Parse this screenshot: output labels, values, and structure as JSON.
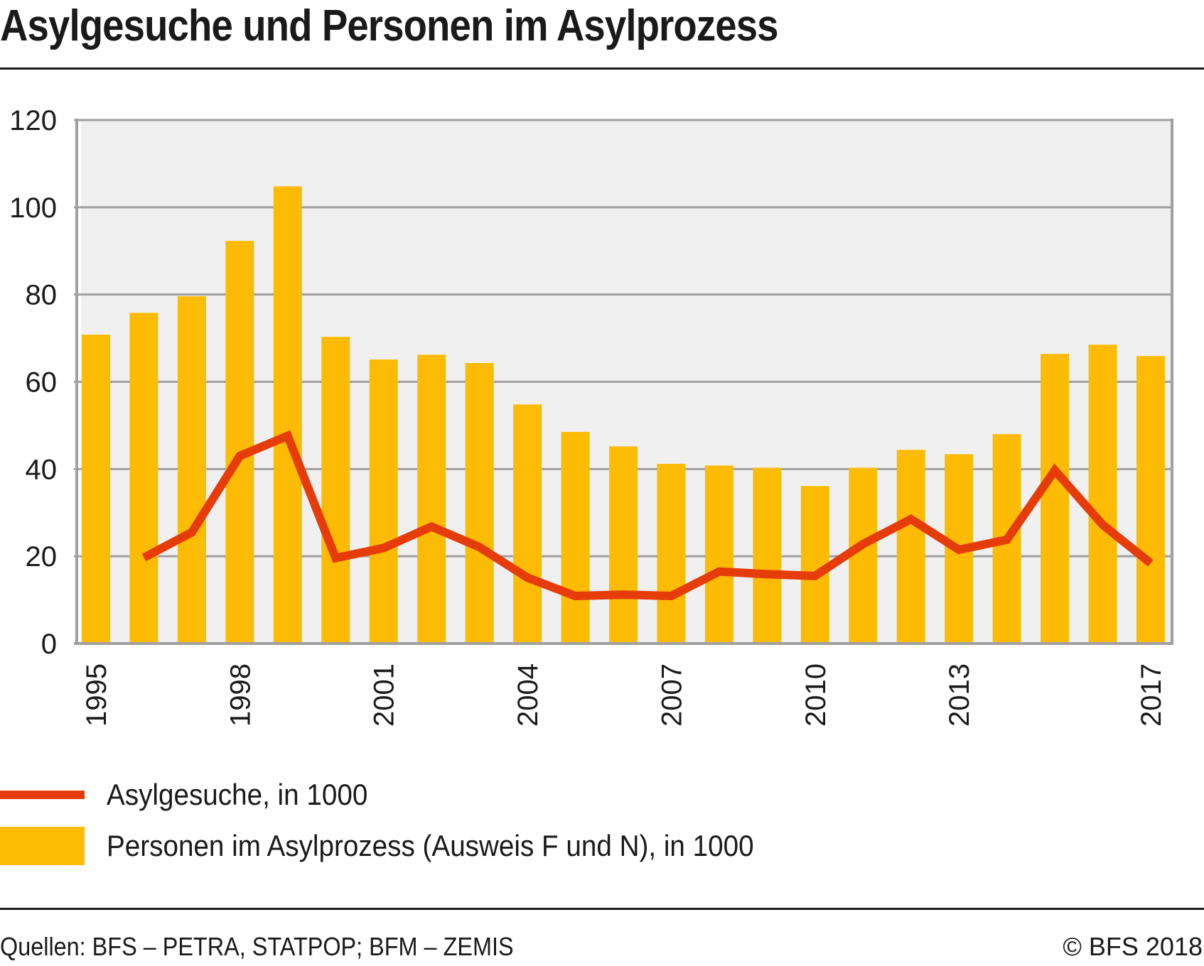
{
  "header": {
    "title": "Asylgesuche und Personen im Asylprozess"
  },
  "chart_data": {
    "type": "bar",
    "title": "Asylgesuche und Personen im Asylprozess",
    "xlabel": "",
    "ylabel": "",
    "ylim": [
      0,
      120
    ],
    "yticks": [
      0,
      20,
      40,
      60,
      80,
      100,
      120
    ],
    "grid": true,
    "categories": [
      "1995",
      "1996",
      "1997",
      "1998",
      "1999",
      "2000",
      "2001",
      "2002",
      "2003",
      "2004",
      "2005",
      "2006",
      "2007",
      "2008",
      "2009",
      "2010",
      "2011",
      "2012",
      "2013",
      "2014",
      "2015",
      "2016",
      "2017"
    ],
    "xtick_labels": [
      "1995",
      "1998",
      "2001",
      "2004",
      "2007",
      "2010",
      "2013",
      "2017"
    ],
    "series": [
      {
        "name": "Personen im Asylprozess (Ausweis F und N), in 1000",
        "type": "bar",
        "color": "#febb04",
        "values": [
          70.8,
          75.8,
          79.6,
          92.3,
          104.8,
          70.3,
          65.1,
          66.2,
          64.3,
          54.8,
          48.5,
          45.2,
          41.2,
          40.8,
          40.3,
          36.1,
          40.3,
          44.4,
          43.4,
          48.0,
          66.4,
          68.5,
          65.9
        ]
      },
      {
        "name": "Asylgesuche, in 1000",
        "type": "line",
        "color": "#e63c0a",
        "values": [
          null,
          19.7,
          25.5,
          43.0,
          47.6,
          19.6,
          21.9,
          26.8,
          22.1,
          15.1,
          10.9,
          11.2,
          10.9,
          16.5,
          15.9,
          15.5,
          22.8,
          28.5,
          21.5,
          23.8,
          39.7,
          27.2,
          18.4
        ]
      }
    ],
    "legend_position": "bottom-left"
  },
  "legend": {
    "line_label": "Asylgesuche, in 1000",
    "bar_label": "Personen im Asylprozess (Ausweis F und N), in 1000"
  },
  "footer": {
    "source": "Quellen: BFS – PETRA, STATPOP; BFM – ZEMIS",
    "copyright": "© BFS 2018"
  },
  "colors": {
    "bar": "#febb04",
    "line": "#e63c0a",
    "plot_bg": "#f0f0f0",
    "grid": "#a0a0a0"
  }
}
